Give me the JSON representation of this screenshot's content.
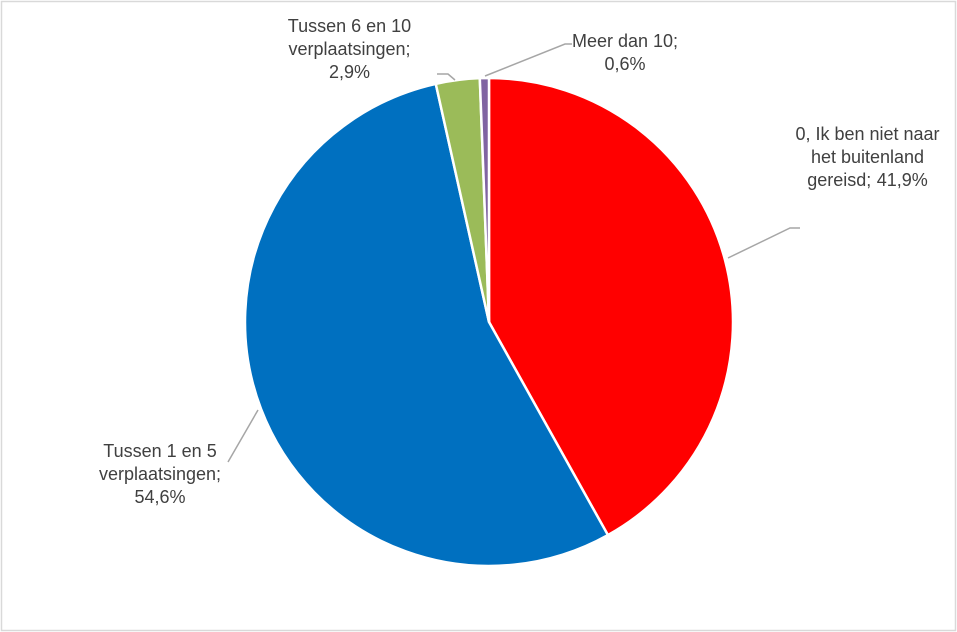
{
  "chart_data": {
    "type": "pie",
    "categories": [
      "0, Ik ben niet naar het buitenland gereisd;",
      "Tussen 1 en 5 verplaatsingen;",
      "Tussen 6 en 10 verplaatsingen;",
      "Meer dan 10;"
    ],
    "values": [
      41.9,
      54.6,
      2.9,
      0.6
    ],
    "value_labels": [
      "41,9%",
      "54,6%",
      "2,9%",
      "0,6%"
    ],
    "colors": [
      "#ff0000",
      "#0070c0",
      "#9bbb59",
      "#8064a2"
    ]
  }
}
